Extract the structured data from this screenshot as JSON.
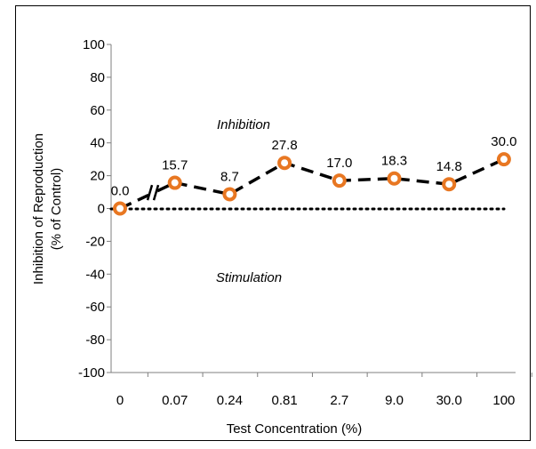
{
  "chart_data": {
    "type": "line",
    "xlabel": "Test Concentration (%)",
    "ylabel": "Inhibition of Reproduction",
    "ylabel2": "(% of Control)",
    "ylim": [
      -100,
      100
    ],
    "yticks": [
      "100",
      "80",
      "60",
      "40",
      "20",
      "0",
      "-20",
      "-40",
      "-60",
      "-80",
      "-100"
    ],
    "categories": [
      "0",
      "0.07",
      "0.24",
      "0.81",
      "2.7",
      "9.0",
      "30.0",
      "100"
    ],
    "values": [
      0.0,
      15.7,
      8.7,
      27.8,
      17.0,
      18.3,
      14.8,
      30.0
    ],
    "data_labels": [
      "0.0",
      "15.7",
      "8.7",
      "27.8",
      "17.0",
      "18.3",
      "14.8",
      "30.0"
    ],
    "annotations": {
      "upper": "Inhibition",
      "lower": "Stimulation"
    },
    "axis_break": true,
    "reference_line": 0,
    "grid": false,
    "line_style": "dashed",
    "colors": {
      "line": "#000000",
      "marker": "#e87722"
    }
  }
}
